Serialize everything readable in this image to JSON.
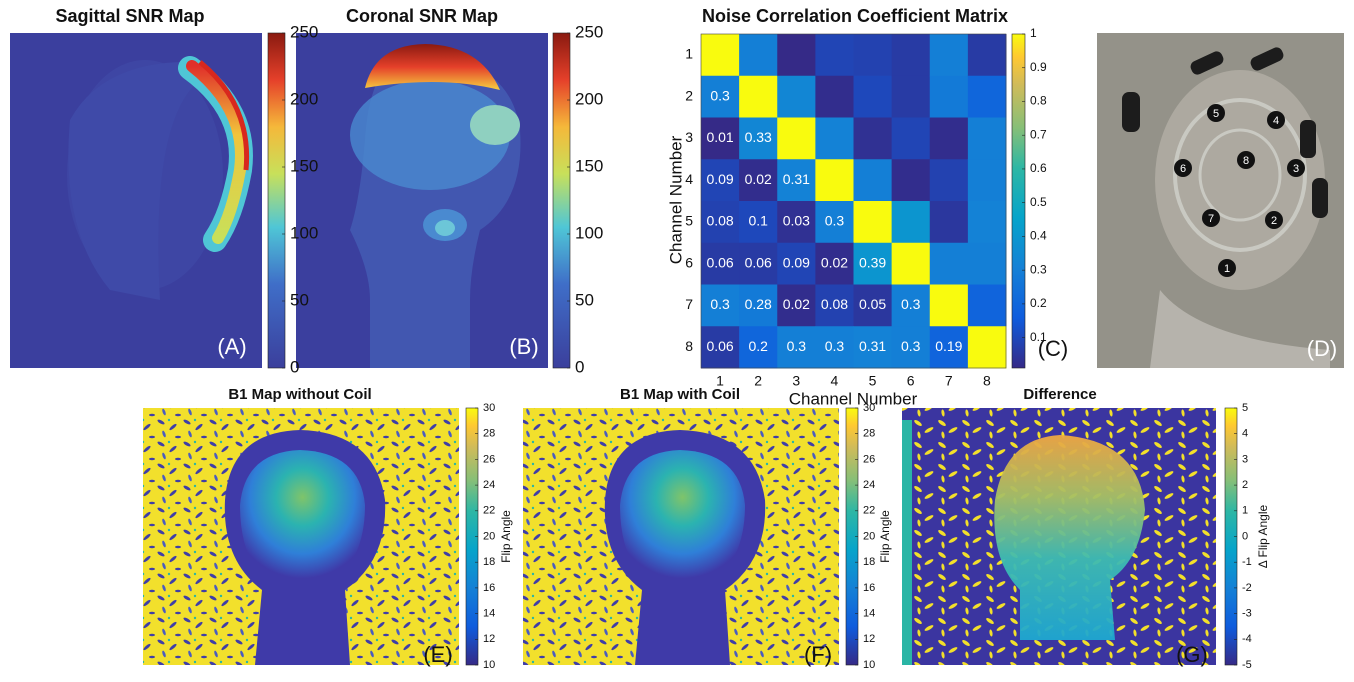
{
  "chart_data": {
    "type": "heatmap",
    "title": "Noise Correlation Coefficient Matrix",
    "x_label": "Channel Number",
    "y_label": "Channel Number",
    "panel_label": "(C)",
    "categories": [
      "1",
      "2",
      "3",
      "4",
      "5",
      "6",
      "7",
      "8"
    ],
    "values": [
      [
        1
      ],
      [
        0.3,
        1
      ],
      [
        0.01,
        0.33,
        1
      ],
      [
        0.09,
        0.02,
        0.31,
        1
      ],
      [
        0.08,
        0.1,
        0.03,
        0.3,
        1
      ],
      [
        0.06,
        0.06,
        0.09,
        0.02,
        0.39,
        1
      ],
      [
        0.3,
        0.28,
        0.02,
        0.08,
        0.05,
        0.3,
        1
      ],
      [
        0.06,
        0.2,
        0.3,
        0.3,
        0.31,
        0.3,
        0.19,
        1
      ]
    ],
    "colormap": "parula",
    "clim": [
      0.01,
      1
    ],
    "cticks": [
      0.1,
      0.2,
      0.3,
      0.4,
      0.5,
      0.6,
      0.7,
      0.8,
      0.9,
      1
    ]
  },
  "panels": {
    "sagittal": {
      "title": "Sagittal SNR Map",
      "label": "(A)",
      "colorbar": {
        "colormap": "jet",
        "lim": [
          0,
          250
        ],
        "ticks": [
          0,
          50,
          100,
          150,
          200,
          250
        ]
      }
    },
    "coronal": {
      "title": "Coronal SNR Map",
      "label": "(B)",
      "colorbar": {
        "colormap": "jet",
        "lim": [
          0,
          250
        ],
        "ticks": [
          0,
          50,
          100,
          150,
          200,
          250
        ]
      }
    },
    "photo": {
      "label": "(D)",
      "markers": [
        "1",
        "2",
        "3",
        "4",
        "5",
        "6",
        "7",
        "8"
      ]
    },
    "b1_without": {
      "title": "B1 Map without Coil",
      "label": "(E)",
      "colorbar": {
        "colormap": "parula",
        "label": "Flip Angle",
        "lim": [
          10,
          30
        ],
        "ticks": [
          10,
          12,
          14,
          16,
          18,
          20,
          22,
          24,
          26,
          28,
          30
        ]
      }
    },
    "b1_with": {
      "title": "B1 Map with Coil",
      "label": "(F)",
      "colorbar": {
        "colormap": "parula",
        "label": "Flip Angle",
        "lim": [
          10,
          30
        ],
        "ticks": [
          10,
          12,
          14,
          16,
          18,
          20,
          22,
          24,
          26,
          28,
          30
        ]
      }
    },
    "difference": {
      "title": "Difference",
      "label": "(G)",
      "colorbar": {
        "colormap": "parula",
        "label": "Δ Flip Angle",
        "lim": [
          -5,
          5
        ],
        "ticks": [
          -5,
          -4,
          -3,
          -2,
          -1,
          0,
          1,
          2,
          3,
          4,
          5
        ]
      }
    }
  }
}
